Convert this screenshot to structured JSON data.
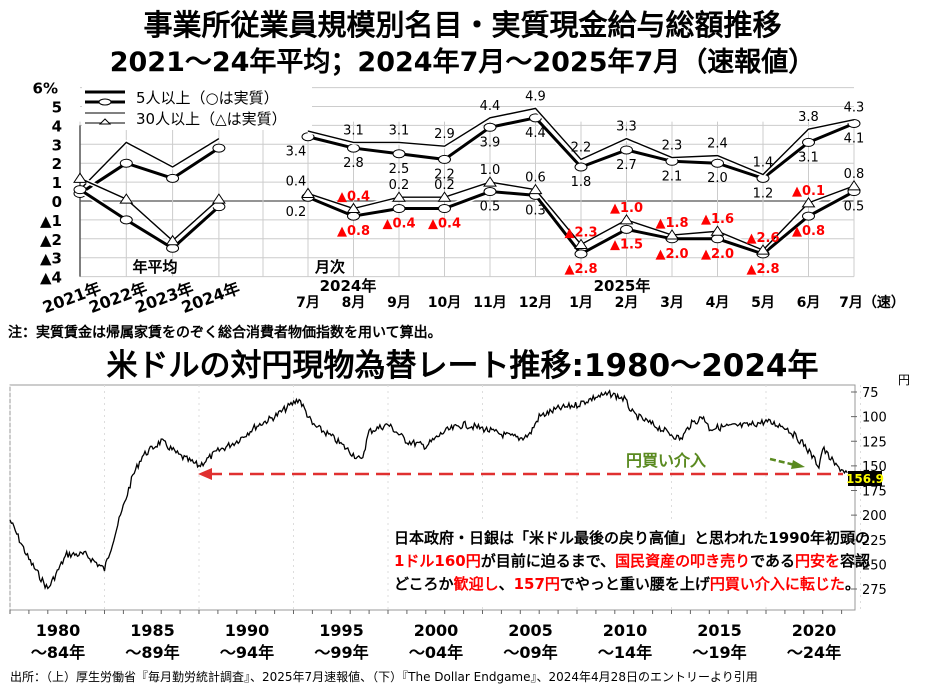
{
  "titles": {
    "main": "事業所従業員規模別名目・実質現金給与総額推移",
    "sub": "2021～24年平均；2024年7月～2025年7月（速報値）",
    "note": "注：実質賃金は帰属家賃をのぞく総合消費者物価指数を用いて算出。",
    "fx_title": "米ドルの対円現物為替レート推移:1980～2024年",
    "source": "出所：（上）厚生労働省『毎月勤労統計調査』、2025年7月速報値、（下）『The Dollar Endgame』、2024年4月28日のエントリーより引用"
  },
  "chart_data": [
    {
      "type": "line",
      "title": "事業所従業員規模別名目・実質現金給与総額推移",
      "ylabel": "%",
      "ylim": [
        -4,
        6
      ],
      "y_ticks": [
        "▲4",
        "▲3",
        "▲2",
        "▲1",
        "0",
        "1",
        "2",
        "3",
        "4",
        "5",
        "6%"
      ],
      "annual_label": "年平均",
      "monthly_label": "月次",
      "year_2024_label": "2024年",
      "year_2025_label": "2025年",
      "annual_categories": [
        "2021年",
        "2022年",
        "2023年",
        "2024年"
      ],
      "monthly_categories": [
        "7月",
        "8月",
        "9月",
        "10月",
        "11月",
        "12月",
        "1月",
        "2月",
        "3月",
        "4月",
        "5月",
        "6月",
        "7月（速）"
      ],
      "legend": [
        "5人以上（○は実質）",
        "30人以上（△は実質）"
      ],
      "series": [
        {
          "name": "5人以上 名目",
          "annual": [
            0.4,
            2.0,
            1.2,
            2.8
          ],
          "monthly": [
            3.4,
            2.8,
            2.5,
            2.2,
            3.9,
            4.4,
            1.8,
            2.7,
            2.1,
            2.0,
            1.2,
            3.1,
            4.1
          ]
        },
        {
          "name": "30人以上 名目",
          "annual": [
            0.6,
            3.1,
            1.8,
            3.3
          ],
          "monthly": [
            3.7,
            3.1,
            3.1,
            2.9,
            4.4,
            4.9,
            2.2,
            3.3,
            2.3,
            2.4,
            1.4,
            3.8,
            4.3
          ]
        },
        {
          "name": "5人以上 実質",
          "annual": [
            0.6,
            -1.0,
            -2.5,
            -0.3
          ],
          "monthly": [
            0.2,
            -0.8,
            -0.4,
            -0.4,
            0.5,
            0.3,
            -2.8,
            -1.5,
            -2.0,
            -2.0,
            -2.8,
            -0.8,
            0.5
          ]
        },
        {
          "name": "30人以上 実質",
          "annual": [
            1.2,
            0.1,
            -2.1,
            0.1
          ],
          "monthly": [
            0.4,
            -0.4,
            0.2,
            0.2,
            1.0,
            0.6,
            -2.3,
            -1.0,
            -1.8,
            -1.6,
            -2.6,
            -0.1,
            0.8
          ]
        }
      ]
    },
    {
      "type": "line",
      "title": "米ドルの対円現物為替レート推移:1980～2024年",
      "ylabel": "円",
      "ylim": [
        75,
        290
      ],
      "y_inverted": true,
      "y_ticks": [
        75,
        100,
        125,
        150,
        175,
        200,
        225,
        250,
        275
      ],
      "x_labels": [
        [
          "1980",
          "～84年"
        ],
        [
          "1985",
          "～89年"
        ],
        [
          "1990",
          "～94年"
        ],
        [
          "1995",
          "～99年"
        ],
        [
          "2000",
          "～04年"
        ],
        [
          "2005",
          "～09年"
        ],
        [
          "2010",
          "～14年"
        ],
        [
          "2015",
          "～19年"
        ],
        [
          "2020",
          "～24年"
        ]
      ],
      "x": [
        1980,
        1981,
        1982,
        1983,
        1984,
        1985,
        1985.7,
        1986.5,
        1987,
        1988,
        1989,
        1990,
        1991,
        1992,
        1993,
        1994,
        1995.3,
        1996,
        1997,
        1998.6,
        1999,
        2000,
        2001,
        2002,
        2003,
        2004,
        2005,
        2006,
        2007,
        2007.5,
        2008,
        2009,
        2010,
        2011,
        2011.8,
        2012.5,
        2013,
        2014,
        2015.5,
        2016,
        2016.7,
        2017,
        2018,
        2019,
        2020,
        2021,
        2022,
        2022.8,
        2023,
        2023.7,
        2024.3
      ],
      "values": [
        205,
        245,
        275,
        240,
        240,
        255,
        210,
        160,
        140,
        125,
        140,
        150,
        135,
        125,
        110,
        100,
        82,
        108,
        120,
        145,
        115,
        108,
        125,
        130,
        115,
        108,
        112,
        118,
        122,
        118,
        100,
        92,
        88,
        80,
        77,
        82,
        98,
        108,
        123,
        108,
        100,
        112,
        110,
        109,
        105,
        110,
        128,
        150,
        132,
        150,
        157
      ],
      "current_label": "156.9",
      "intervention_label": "円買い介入",
      "colors": {
        "line": "#000000",
        "dashed": "#e03030",
        "intervention": "#5a8a20",
        "current_bg": "#000000",
        "current_text": "#ffff00"
      }
    }
  ],
  "annotation": {
    "line1": "日本政府・日銀は「米ドル最後の戻り高値」と思われた1990年初頭の",
    "line2_red1": "1ドル160円",
    "line2_b": "が目前に迫るまで、",
    "line2_red2": "国民資産の叩き売り",
    "line2_c": "である",
    "line2_red3": "円安を",
    "line2_d": "容認",
    "line3_a": "どころか",
    "line3_red1": "歓迎し",
    "line3_b": "、",
    "line3_red2": "157円",
    "line3_c": "でやっと重い腰を上げ",
    "line3_red3": "円買い介入に転じた",
    "line3_d": "。"
  }
}
